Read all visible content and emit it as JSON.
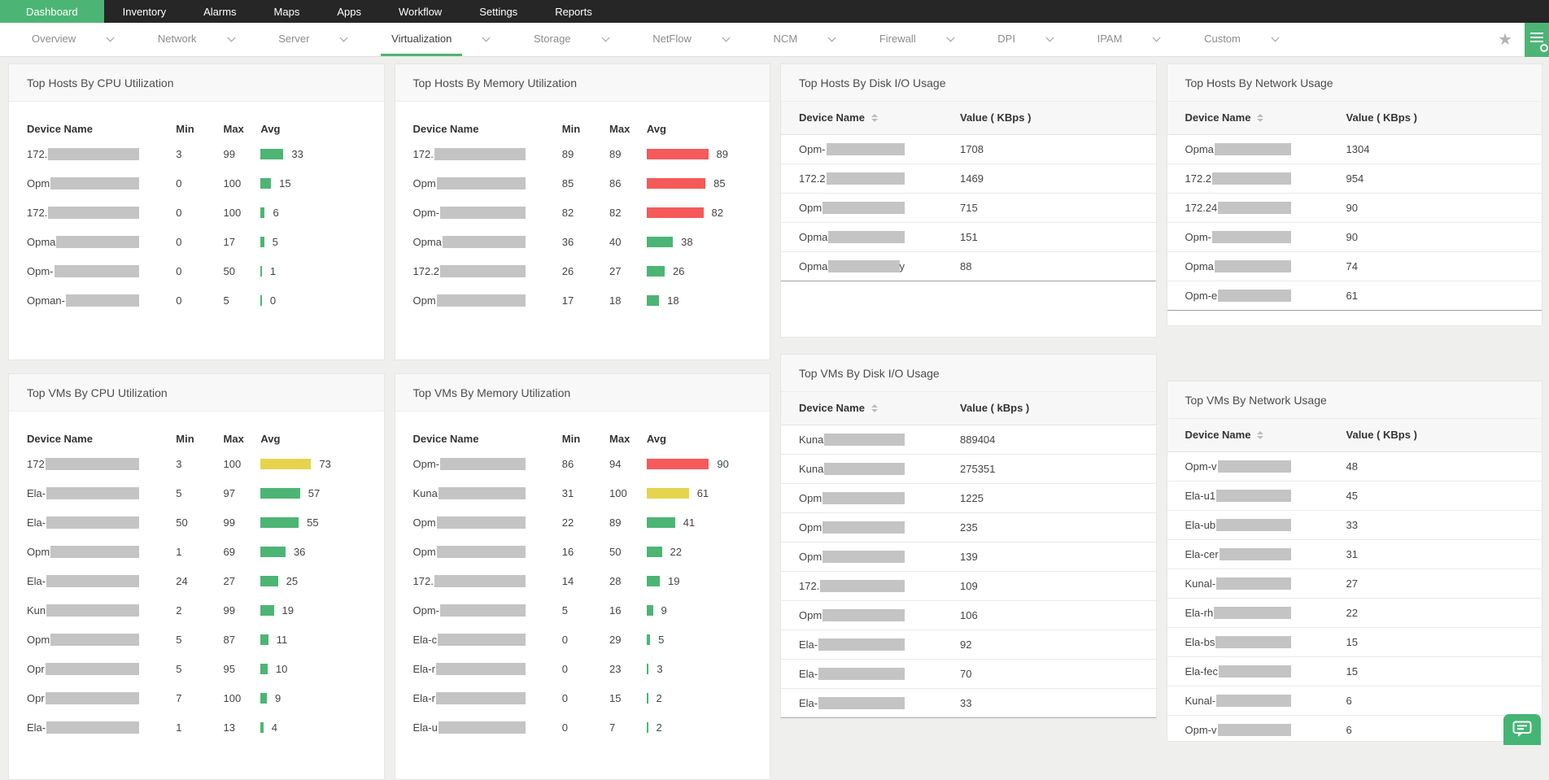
{
  "topnav": {
    "items": [
      {
        "label": "Dashboard",
        "active": true
      },
      {
        "label": "Inventory",
        "active": false
      },
      {
        "label": "Alarms",
        "active": false
      },
      {
        "label": "Maps",
        "active": false
      },
      {
        "label": "Apps",
        "active": false
      },
      {
        "label": "Workflow",
        "active": false
      },
      {
        "label": "Settings",
        "active": false
      },
      {
        "label": "Reports",
        "active": false
      }
    ]
  },
  "tabbar": {
    "tabs": [
      {
        "label": "Overview",
        "active": false
      },
      {
        "label": "Network",
        "active": false
      },
      {
        "label": "Server",
        "active": false
      },
      {
        "label": "Virtualization",
        "active": true
      },
      {
        "label": "Storage",
        "active": false
      },
      {
        "label": "NetFlow",
        "active": false
      },
      {
        "label": "NCM",
        "active": false
      },
      {
        "label": "Firewall",
        "active": false
      },
      {
        "label": "DPI",
        "active": false
      },
      {
        "label": "IPAM",
        "active": false
      },
      {
        "label": "Custom",
        "active": false
      }
    ]
  },
  "colors": {
    "accent_green": "#4cb575",
    "bar_green": "#4cb575",
    "bar_yellow": "#e6d44e",
    "bar_red": "#f5595a"
  },
  "widgets": {
    "hosts_cpu": {
      "type": "utilization",
      "title": "Top Hosts By CPU Utilization",
      "columns": [
        "Device Name",
        "Min",
        "Max",
        "Avg"
      ],
      "rows": [
        {
          "prefix": "172.",
          "min": 3,
          "max": 99,
          "avg": 33,
          "level": "green"
        },
        {
          "prefix": "Opm",
          "min": 0,
          "max": 100,
          "avg": 15,
          "level": "green"
        },
        {
          "prefix": "172.",
          "min": 0,
          "max": 100,
          "avg": 6,
          "level": "green"
        },
        {
          "prefix": "Opma",
          "min": 0,
          "max": 17,
          "avg": 5,
          "level": "green"
        },
        {
          "prefix": "Opm-",
          "min": 0,
          "max": 50,
          "avg": 1,
          "level": "green"
        },
        {
          "prefix": "Opman-",
          "min": 0,
          "max": 5,
          "avg": 0,
          "level": "green"
        }
      ]
    },
    "hosts_memory": {
      "type": "utilization",
      "title": "Top Hosts By Memory Utilization",
      "columns": [
        "Device Name",
        "Min",
        "Max",
        "Avg"
      ],
      "rows": [
        {
          "prefix": "172.",
          "min": 89,
          "max": 89,
          "avg": 89,
          "level": "red"
        },
        {
          "prefix": "Opm",
          "min": 85,
          "max": 86,
          "avg": 85,
          "level": "red"
        },
        {
          "prefix": "Opm-",
          "min": 82,
          "max": 82,
          "avg": 82,
          "level": "red"
        },
        {
          "prefix": "Opma",
          "min": 36,
          "max": 40,
          "avg": 38,
          "level": "green"
        },
        {
          "prefix": "172.2",
          "min": 26,
          "max": 27,
          "avg": 26,
          "level": "green"
        },
        {
          "prefix": "Opm",
          "min": 17,
          "max": 18,
          "avg": 18,
          "level": "green"
        }
      ]
    },
    "hosts_disk": {
      "type": "values",
      "title": "Top Hosts By Disk I/O Usage",
      "columns": [
        "Device Name",
        "Value ( KBps )"
      ],
      "rows": [
        {
          "prefix": "Opm-",
          "value": "1708"
        },
        {
          "prefix": "172.2",
          "value": "1469"
        },
        {
          "prefix": "Opm",
          "value": "715"
        },
        {
          "prefix": "Opma",
          "value": "151"
        },
        {
          "prefix": "Opma",
          "suffix": "y",
          "value": "88"
        }
      ]
    },
    "hosts_network": {
      "type": "values",
      "title": "Top Hosts By Network Usage",
      "columns": [
        "Device Name",
        "Value ( KBps )"
      ],
      "rows": [
        {
          "prefix": "Opma",
          "value": "1304"
        },
        {
          "prefix": "172.2",
          "value": "954"
        },
        {
          "prefix": "172.24",
          "value": "90"
        },
        {
          "prefix": "Opm-",
          "value": "90"
        },
        {
          "prefix": "Opma",
          "value": "74"
        },
        {
          "prefix": "Opm-e",
          "value": "61"
        }
      ]
    },
    "vms_cpu": {
      "type": "utilization",
      "title": "Top VMs By CPU Utilization",
      "columns": [
        "Device Name",
        "Min",
        "Max",
        "Avg"
      ],
      "rows": [
        {
          "prefix": "172",
          "min": 3,
          "max": 100,
          "avg": 73,
          "level": "yellow"
        },
        {
          "prefix": "Ela-",
          "min": 5,
          "max": 97,
          "avg": 57,
          "level": "green"
        },
        {
          "prefix": "Ela-",
          "min": 50,
          "max": 99,
          "avg": 55,
          "level": "green"
        },
        {
          "prefix": "Opm",
          "min": 1,
          "max": 69,
          "avg": 36,
          "level": "green"
        },
        {
          "prefix": "Ela-",
          "min": 24,
          "max": 27,
          "avg": 25,
          "level": "green"
        },
        {
          "prefix": "Kun",
          "min": 2,
          "max": 99,
          "avg": 19,
          "level": "green"
        },
        {
          "prefix": "Opm",
          "min": 5,
          "max": 87,
          "avg": 11,
          "level": "green"
        },
        {
          "prefix": "Opr",
          "min": 5,
          "max": 95,
          "avg": 10,
          "level": "green"
        },
        {
          "prefix": "Opr",
          "min": 7,
          "max": 100,
          "avg": 9,
          "level": "green"
        },
        {
          "prefix": "Ela-",
          "min": 1,
          "max": 13,
          "avg": 4,
          "level": "green"
        }
      ]
    },
    "vms_memory": {
      "type": "utilization",
      "title": "Top VMs By Memory Utilization",
      "columns": [
        "Device Name",
        "Min",
        "Max",
        "Avg"
      ],
      "rows": [
        {
          "prefix": "Opm-",
          "min": 86,
          "max": 94,
          "avg": 90,
          "level": "red"
        },
        {
          "prefix": "Kuna",
          "min": 31,
          "max": 100,
          "avg": 61,
          "level": "yellow"
        },
        {
          "prefix": "Opm",
          "min": 22,
          "max": 89,
          "avg": 41,
          "level": "green"
        },
        {
          "prefix": "Opm",
          "min": 16,
          "max": 50,
          "avg": 22,
          "level": "green"
        },
        {
          "prefix": "172.",
          "min": 14,
          "max": 28,
          "avg": 19,
          "level": "green"
        },
        {
          "prefix": "Opm-",
          "min": 5,
          "max": 16,
          "avg": 9,
          "level": "green"
        },
        {
          "prefix": "Ela-c",
          "min": 0,
          "max": 29,
          "avg": 5,
          "level": "green"
        },
        {
          "prefix": "Ela-r",
          "min": 0,
          "max": 23,
          "avg": 3,
          "level": "green"
        },
        {
          "prefix": "Ela-r",
          "min": 0,
          "max": 15,
          "avg": 2,
          "level": "green"
        },
        {
          "prefix": "Ela-u",
          "min": 0,
          "max": 7,
          "avg": 2,
          "level": "green"
        }
      ]
    },
    "vms_disk": {
      "type": "values",
      "title": "Top VMs By Disk I/O Usage",
      "columns": [
        "Device Name",
        "Value ( kBps )"
      ],
      "rows": [
        {
          "prefix": "Kuna",
          "value": "889404"
        },
        {
          "prefix": "Kuna",
          "value": "275351"
        },
        {
          "prefix": "Opm",
          "value": "1225"
        },
        {
          "prefix": "Opm",
          "value": "235"
        },
        {
          "prefix": "Opm",
          "value": "139"
        },
        {
          "prefix": "172.",
          "value": "109"
        },
        {
          "prefix": "Opm",
          "value": "106"
        },
        {
          "prefix": "Ela-",
          "value": "92"
        },
        {
          "prefix": "Ela-",
          "value": "70"
        },
        {
          "prefix": "Ela-",
          "value": "33"
        }
      ]
    },
    "vms_network": {
      "type": "values",
      "title": "Top VMs By Network Usage",
      "columns": [
        "Device Name",
        "Value ( KBps )"
      ],
      "rows": [
        {
          "prefix": "Opm-v",
          "value": "48"
        },
        {
          "prefix": "Ela-u1",
          "value": "45"
        },
        {
          "prefix": "Ela-ub",
          "value": "33"
        },
        {
          "prefix": "Ela-cer",
          "value": "31"
        },
        {
          "prefix": "Kunal-",
          "value": "27"
        },
        {
          "prefix": "Ela-rh",
          "value": "22"
        },
        {
          "prefix": "Ela-bs",
          "value": "15"
        },
        {
          "prefix": "Ela-fec",
          "value": "15"
        },
        {
          "prefix": "Kunal-",
          "value": "6"
        },
        {
          "prefix": "Opm-v",
          "value": "6"
        }
      ]
    }
  }
}
